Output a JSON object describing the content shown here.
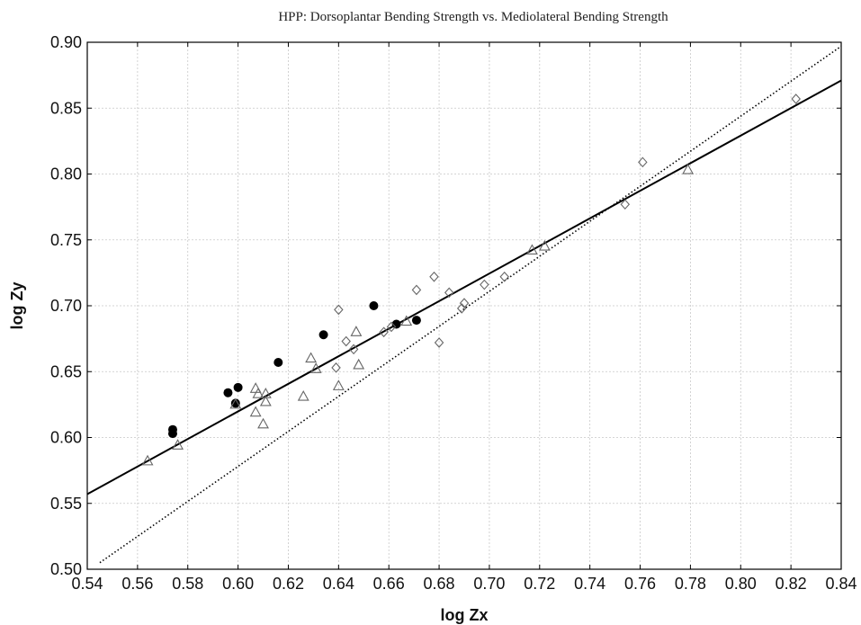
{
  "chart_data": {
    "type": "scatter",
    "title": "HPP: Dorsoplantar Bending Strength vs. Mediolateral Bending Strength",
    "xlabel": "log Zx",
    "ylabel": "log Zy",
    "xlim": [
      0.54,
      0.84
    ],
    "ylim": [
      0.5,
      0.9
    ],
    "x_ticks": [
      "0.54",
      "0.56",
      "0.58",
      "0.60",
      "0.62",
      "0.64",
      "0.66",
      "0.68",
      "0.70",
      "0.72",
      "0.74",
      "0.76",
      "0.78",
      "0.80",
      "0.82",
      "0.84"
    ],
    "y_ticks": [
      "0.50",
      "0.55",
      "0.60",
      "0.65",
      "0.70",
      "0.75",
      "0.80",
      "0.85",
      "0.90"
    ],
    "grid": true,
    "series": [
      {
        "marker": "filled-circle",
        "points": [
          [
            0.574,
            0.606
          ],
          [
            0.574,
            0.603
          ],
          [
            0.596,
            0.634
          ],
          [
            0.6,
            0.638
          ],
          [
            0.599,
            0.626
          ],
          [
            0.616,
            0.657
          ],
          [
            0.634,
            0.678
          ],
          [
            0.654,
            0.7
          ],
          [
            0.663,
            0.686
          ],
          [
            0.671,
            0.689
          ]
        ]
      },
      {
        "marker": "open-triangle",
        "points": [
          [
            0.564,
            0.582
          ],
          [
            0.576,
            0.594
          ],
          [
            0.599,
            0.625
          ],
          [
            0.607,
            0.619
          ],
          [
            0.607,
            0.637
          ],
          [
            0.608,
            0.633
          ],
          [
            0.61,
            0.61
          ],
          [
            0.611,
            0.627
          ],
          [
            0.611,
            0.633
          ],
          [
            0.626,
            0.631
          ],
          [
            0.629,
            0.66
          ],
          [
            0.631,
            0.652
          ],
          [
            0.64,
            0.639
          ],
          [
            0.647,
            0.68
          ],
          [
            0.648,
            0.655
          ],
          [
            0.667,
            0.688
          ],
          [
            0.717,
            0.742
          ],
          [
            0.722,
            0.745
          ],
          [
            0.779,
            0.803
          ]
        ]
      },
      {
        "marker": "open-diamond",
        "points": [
          [
            0.639,
            0.653
          ],
          [
            0.64,
            0.697
          ],
          [
            0.643,
            0.673
          ],
          [
            0.646,
            0.667
          ],
          [
            0.658,
            0.68
          ],
          [
            0.661,
            0.684
          ],
          [
            0.671,
            0.712
          ],
          [
            0.678,
            0.722
          ],
          [
            0.68,
            0.672
          ],
          [
            0.684,
            0.71
          ],
          [
            0.689,
            0.698
          ],
          [
            0.69,
            0.702
          ],
          [
            0.698,
            0.716
          ],
          [
            0.706,
            0.722
          ],
          [
            0.754,
            0.777
          ],
          [
            0.761,
            0.809
          ],
          [
            0.822,
            0.857
          ]
        ]
      }
    ],
    "lines": [
      {
        "style": "solid",
        "points": [
          [
            0.54,
            0.557
          ],
          [
            0.84,
            0.871
          ]
        ]
      },
      {
        "style": "dotted",
        "points": [
          [
            0.545,
            0.505
          ],
          [
            0.84,
            0.897
          ]
        ]
      }
    ]
  }
}
